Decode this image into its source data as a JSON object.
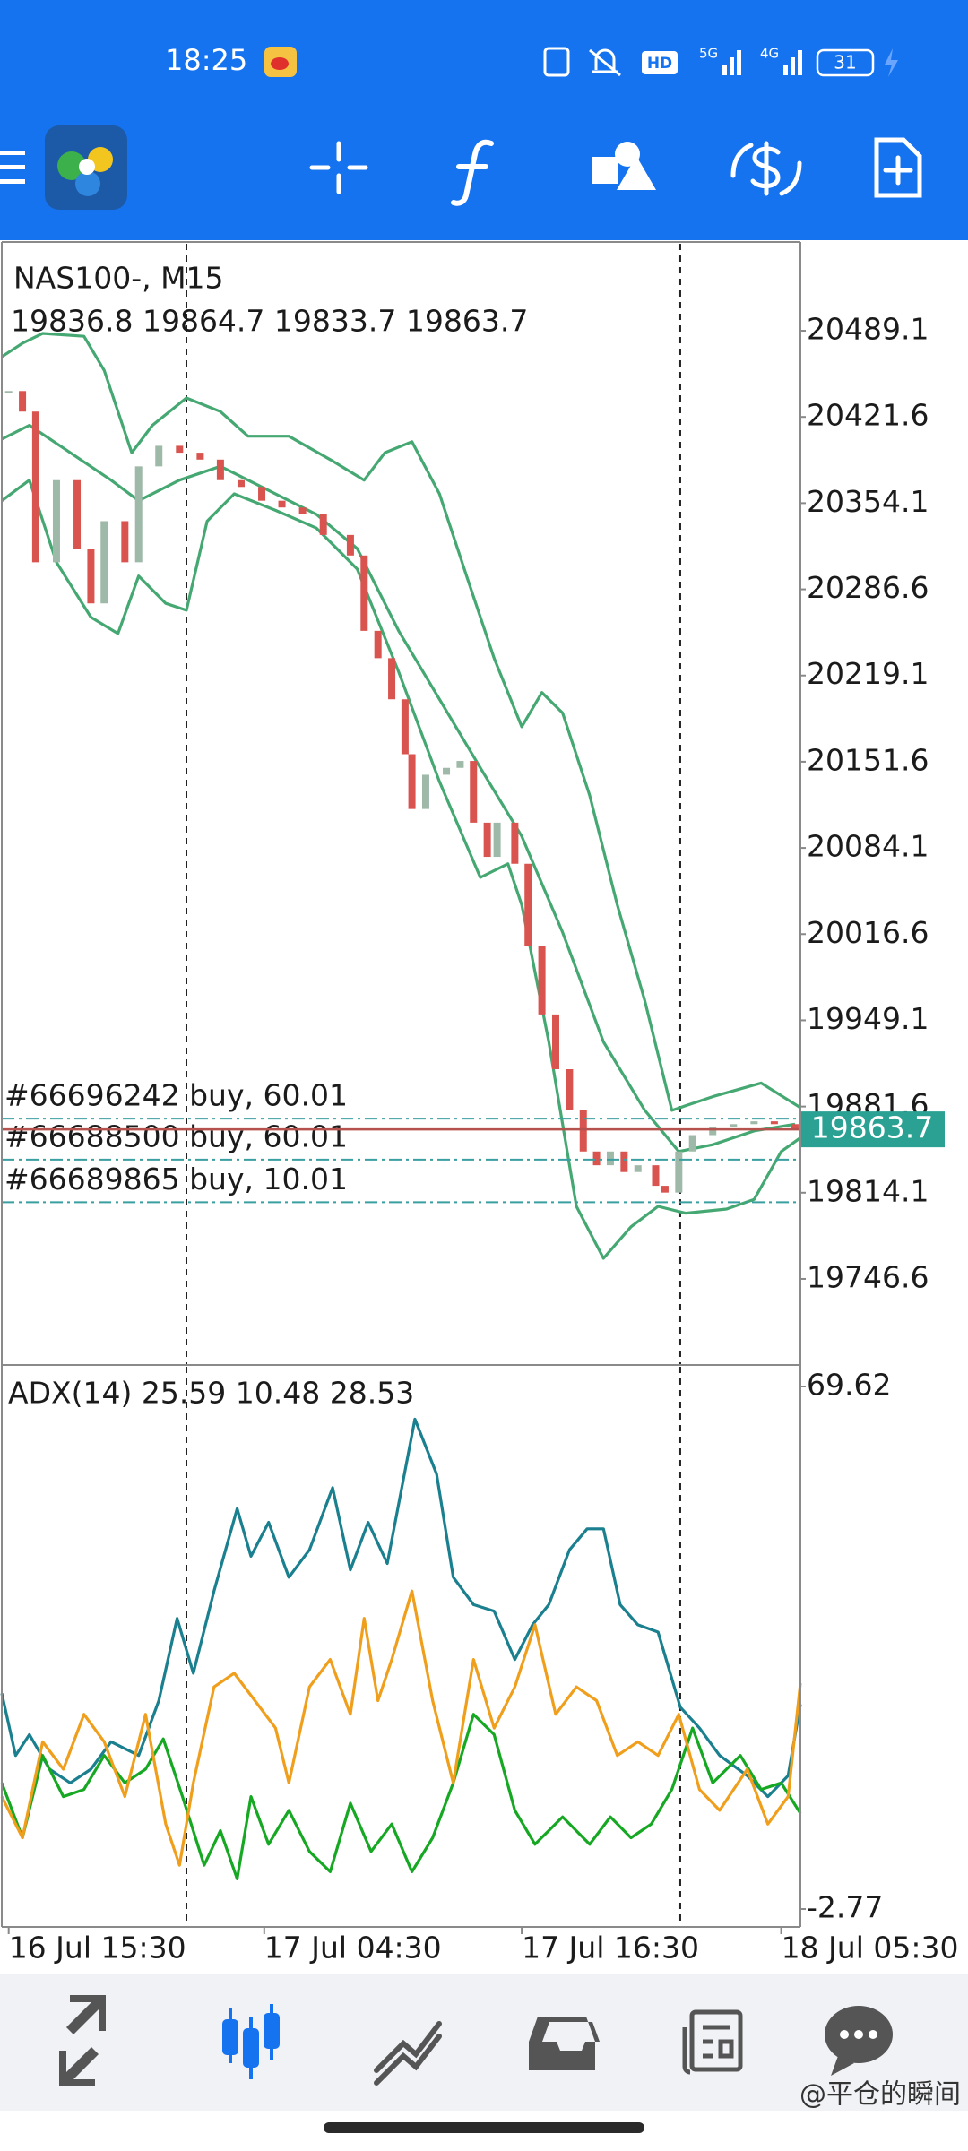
{
  "status_bar": {
    "time": "18:25",
    "hd": "HD",
    "net1": "5G",
    "net2": "4G",
    "battery": "31"
  },
  "chart_data": [
    {
      "type": "candlestick",
      "title": "NAS100-, M15",
      "subtitle": "19836.8 19864.7 19833.7 19863.7",
      "xlim": [
        0,
        162.2
      ],
      "ylim": [
        19679.9,
        20557.2
      ],
      "yticks": [
        20489.1,
        20421.6,
        20354.1,
        20286.6,
        20219.1,
        20151.6,
        20084.1,
        20016.6,
        19949.1,
        19881.6,
        19814.1,
        19746.6
      ],
      "separators": [
        37.5,
        137.8
      ],
      "up_color": "#9fb9a9",
      "down_color": "#d9534f",
      "candles": {
        "x": [
          1.4,
          4.2,
          6.9,
          11.1,
          15.3,
          18.1,
          20.8,
          25,
          27.8,
          31.9,
          36.1,
          40.3,
          44.4,
          48.6,
          52.8,
          56.9,
          61.1,
          65.3,
          70.8,
          73.6,
          76.4,
          79.2,
          81.9,
          83.3,
          86.1,
          90.3,
          93.1,
          95.8,
          98.6,
          100.6,
          104.2,
          106.9,
          109.7,
          112.5,
          115.3,
          118.1,
          120.8,
          123.6,
          126.4,
          129.2,
          132.8,
          134.7,
          137.5,
          140.3,
          144.4,
          148.6,
          152.8,
          156.9,
          161.1
        ],
        "close": [
          20441.9,
          20425.8,
          20307.8,
          20372.1,
          20318.5,
          20275.6,
          20340.0,
          20307.8,
          20382.9,
          20399.0,
          20393.6,
          20388.2,
          20372.1,
          20366.8,
          20356.0,
          20350.7,
          20345.3,
          20329.2,
          20313.1,
          20254.1,
          20232.7,
          20200.5,
          20157.5,
          20114.6,
          20141.4,
          20146.8,
          20152.2,
          20103.9,
          20077.1,
          20103.9,
          20071.7,
          20007.3,
          19953.7,
          19910.8,
          19878.6,
          19846.4,
          19835.6,
          19846.4,
          19830.3,
          19835.6,
          19819.5,
          19814.2,
          19846.4,
          19859.2,
          19865.7,
          19867.8,
          19870.0,
          19867.8,
          19863.7
        ]
      },
      "bands": [
        {
          "color": "#45a872",
          "x": [
            0,
            4.2,
            8.3,
            16.7,
            20.8,
            26.4,
            30.6,
            37.5,
            44.4,
            50,
            58.3,
            66.7,
            73.6,
            77.8,
            83.3,
            88.9,
            94.4,
            100,
            105.6,
            109.7,
            113.9,
            119.4,
            125,
            130.6,
            136.1,
            144.4,
            154.2,
            162.2
          ],
          "values": [
            20468.7,
            20479.4,
            20487.0,
            20484.8,
            20458.0,
            20393.6,
            20415.1,
            20436.5,
            20425.8,
            20406.5,
            20406.5,
            20388.2,
            20372.1,
            20393.6,
            20402.2,
            20361.4,
            20297.0,
            20232.7,
            20179.0,
            20205.8,
            20189.8,
            20125.3,
            20039.5,
            19964.4,
            19878.6,
            19889.3,
            19900.0,
            19880.7
          ]
        },
        {
          "color": "#45a872",
          "x": [
            0,
            5.6,
            13.9,
            22.2,
            27.8,
            36.1,
            44.4,
            52.8,
            63.9,
            72.2,
            80.6,
            88.9,
            97.2,
            105.6,
            113.9,
            122.2,
            130.6,
            137.5,
            144.4,
            152.8,
            161.1
          ],
          "values": [
            20404.3,
            20415.1,
            20393.6,
            20372.1,
            20356.0,
            20372.1,
            20382.9,
            20366.8,
            20345.3,
            20318.5,
            20254.1,
            20200.5,
            20146.8,
            20093.2,
            20018.0,
            19932.2,
            19878.6,
            19846.4,
            19851.7,
            19862.5,
            19867.8
          ]
        },
        {
          "color": "#45a872",
          "x": [
            0,
            5.6,
            11.1,
            18.1,
            23.6,
            27.8,
            33.3,
            37.5,
            41.7,
            47.2,
            55.6,
            63.9,
            72.2,
            80.6,
            88.9,
            97.2,
            102.8,
            105.6,
            111.1,
            116.7,
            122.2,
            127.8,
            133.3,
            138.9,
            147.2,
            152.8,
            158.3,
            162.2
          ],
          "values": [
            20356.0,
            20372.1,
            20307.8,
            20264.8,
            20252.0,
            20297.0,
            20275.6,
            20270.2,
            20340.0,
            20361.4,
            20348.5,
            20334.6,
            20302.4,
            20221.9,
            20136.1,
            20061.0,
            20071.7,
            20039.5,
            19932.2,
            19803.4,
            19762.7,
            19787.4,
            19803.4,
            19798.1,
            19801.3,
            19808.9,
            19846.4,
            19857.1
          ]
        }
      ],
      "orders": [
        {
          "label": "#66696242 buy, 60.01",
          "price": 19872.1
        },
        {
          "label": "#66688500 buy, 60.01",
          "price": 19840.0
        },
        {
          "label": "#66689865 buy, 10.01",
          "price": 19806.7
        }
      ],
      "order_color": "#3a9fa0",
      "current_price": 19863.7,
      "current_color": "#2aa193"
    },
    {
      "type": "line",
      "title": "ADX(14) 25.59 10.48 28.53",
      "xlim": [
        0,
        162.2
      ],
      "ylim": [
        -5.25,
        72.35
      ],
      "yticks": [
        69.62,
        -2.77
      ],
      "separators": [
        37.5,
        137.8
      ],
      "xticks": [
        {
          "value": 1.4,
          "label": "16 Jul 15:30"
        },
        {
          "value": 53.3,
          "label": "17 Jul 04:30"
        },
        {
          "value": 105.6,
          "label": "17 Jul 16:30"
        },
        {
          "value": 158.3,
          "label": "18 Jul 05:30"
        }
      ],
      "lines": [
        {
          "color": "#1a7f8e",
          "x": [
            0,
            2.8,
            5.6,
            9.7,
            13.9,
            18.1,
            22.2,
            27.8,
            31.9,
            35.6,
            38.9,
            43.1,
            47.8,
            50.6,
            54.2,
            58.3,
            62.5,
            67.2,
            70.8,
            74.4,
            78.3,
            83.9,
            88.3,
            91.7,
            95.8,
            100,
            104.2,
            107.8,
            111.1,
            115.3,
            118.9,
            122.2,
            125.6,
            129.2,
            133.3,
            137.8,
            141.7,
            145.8,
            151.4,
            155.6,
            159.7,
            162.2
          ],
          "values": [
            27.1,
            18.5,
            21.4,
            16.6,
            14.7,
            16.6,
            20.4,
            18.5,
            26.1,
            37.5,
            29.9,
            41.3,
            52.7,
            46.1,
            50.8,
            43.2,
            47.0,
            55.6,
            44.2,
            50.8,
            45.1,
            65.1,
            57.5,
            43.2,
            39.4,
            38.5,
            31.8,
            36.6,
            39.4,
            47.0,
            49.9,
            49.9,
            39.4,
            36.6,
            35.6,
            25.2,
            22.3,
            18.5,
            15.7,
            12.8,
            15.7,
            25.59
          ]
        },
        {
          "color": "#16a823",
          "x": [
            0,
            4.2,
            8.3,
            12.5,
            16.7,
            20.8,
            25,
            29.2,
            32.8,
            36.7,
            41.1,
            44.4,
            47.8,
            50.6,
            54.2,
            58.3,
            62.5,
            66.7,
            70.8,
            75,
            79.2,
            83.3,
            87.5,
            91.7,
            95.8,
            100,
            104.2,
            108.3,
            113.9,
            119.4,
            123.6,
            127.8,
            131.9,
            136.1,
            140.3,
            144.4,
            150,
            154.2,
            158.3,
            162.2
          ],
          "values": [
            14.7,
            7.1,
            18.5,
            12.8,
            13.8,
            18.5,
            14.7,
            16.6,
            20.8,
            12.8,
            3.3,
            8.1,
            1.4,
            12.8,
            6.2,
            10.9,
            5.2,
            2.4,
            11.9,
            5.2,
            9.0,
            2.4,
            7.1,
            14.7,
            24.2,
            21.4,
            10.9,
            6.2,
            10.0,
            6.2,
            10.0,
            7.1,
            9.0,
            13.8,
            22.3,
            14.7,
            18.5,
            13.8,
            14.7,
            10.48
          ]
        },
        {
          "color": "#ef9f1c",
          "x": [
            0,
            4.2,
            8.3,
            12.5,
            16.7,
            20.8,
            25,
            29.2,
            33.3,
            36.1,
            38.9,
            43.1,
            47.2,
            51.4,
            55.6,
            58.3,
            62.5,
            66.7,
            70.8,
            73.6,
            76.4,
            79.2,
            83.3,
            87.5,
            91.7,
            95.8,
            100,
            104.2,
            108.3,
            112.5,
            116.7,
            120.8,
            125,
            129.2,
            133.3,
            137.5,
            141.7,
            145.8,
            151.4,
            155.6,
            159.7,
            162.2
          ],
          "values": [
            12.8,
            7.1,
            20.4,
            16.6,
            24.2,
            20.4,
            12.8,
            24.2,
            9.0,
            3.3,
            14.7,
            28.0,
            29.9,
            26.1,
            22.3,
            14.7,
            28.0,
            31.8,
            24.2,
            37.5,
            26.1,
            31.8,
            41.3,
            26.1,
            14.7,
            31.8,
            22.3,
            28.0,
            36.6,
            24.2,
            28.0,
            26.1,
            18.5,
            20.4,
            18.5,
            24.2,
            13.8,
            10.9,
            16.6,
            9.0,
            12.8,
            28.53
          ]
        }
      ]
    }
  ],
  "watermark": "@平仓的瞬间"
}
